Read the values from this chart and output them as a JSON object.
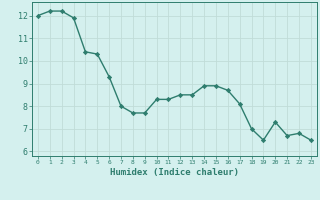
{
  "x": [
    0,
    1,
    2,
    3,
    4,
    5,
    6,
    7,
    8,
    9,
    10,
    11,
    12,
    13,
    14,
    15,
    16,
    17,
    18,
    19,
    20,
    21,
    22,
    23
  ],
  "y": [
    12.0,
    12.2,
    12.2,
    11.9,
    10.4,
    10.3,
    9.3,
    8.0,
    7.7,
    7.7,
    8.3,
    8.3,
    8.5,
    8.5,
    8.9,
    8.9,
    8.7,
    8.1,
    7.0,
    6.5,
    7.3,
    6.7,
    6.8,
    6.5
  ],
  "xlabel": "Humidex (Indice chaleur)",
  "xlim": [
    -0.5,
    23.5
  ],
  "ylim": [
    5.8,
    12.6
  ],
  "line_color": "#2e7d6e",
  "marker_color": "#2e7d6e",
  "bg_color": "#d4f0ee",
  "grid_color": "#c0dcd8",
  "tick_color": "#2e7d6e",
  "yticks": [
    6,
    7,
    8,
    9,
    10,
    11,
    12
  ],
  "xticks": [
    0,
    1,
    2,
    3,
    4,
    5,
    6,
    7,
    8,
    9,
    10,
    11,
    12,
    13,
    14,
    15,
    16,
    17,
    18,
    19,
    20,
    21,
    22,
    23
  ]
}
